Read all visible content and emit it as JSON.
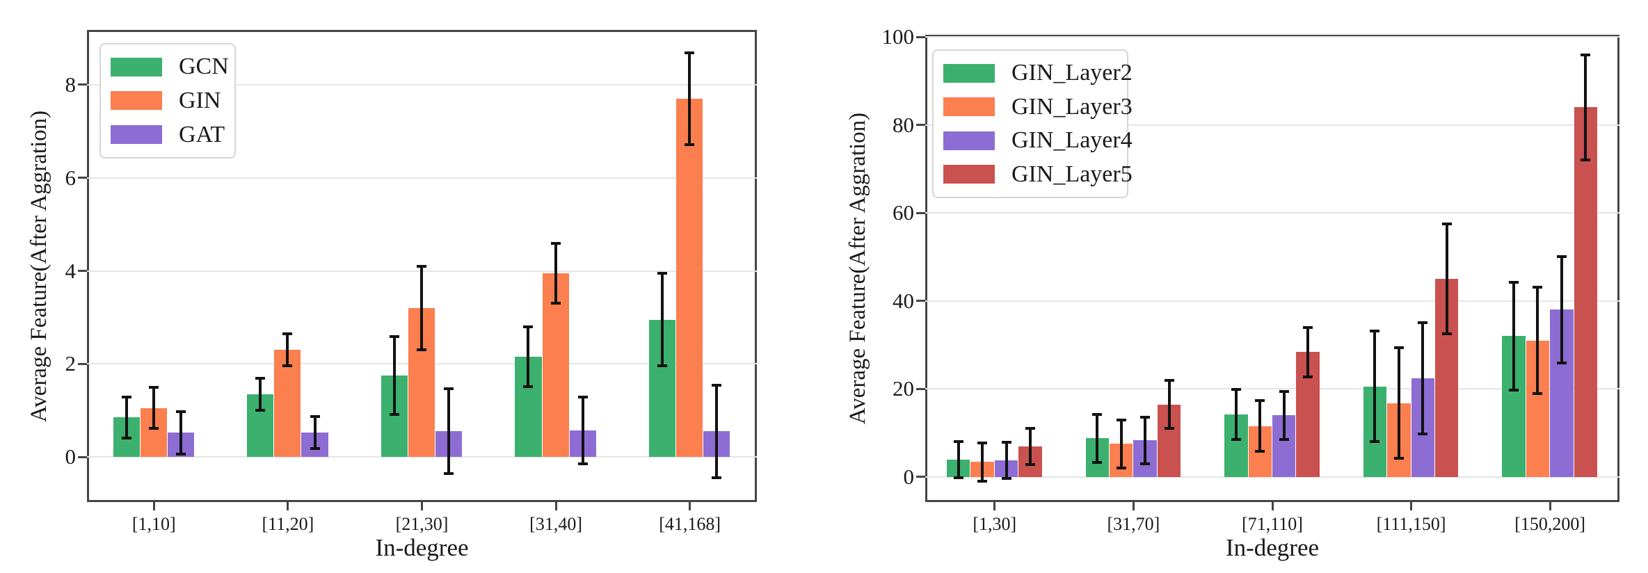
{
  "figure": {
    "background": "#ffffff"
  },
  "style": {
    "grid_color": "#e5e5e5",
    "spine_color": "#454545",
    "tick_color": "#454545",
    "errorbar_color": "#121212",
    "legend_border_color": "#d6d6d6",
    "legend_background": "#ffffff",
    "text_color": "#1a1a1a"
  },
  "chart_data": [
    {
      "type": "bar",
      "title": "",
      "xlabel": "In-degree",
      "ylabel": "Average Feature(After Aggration)",
      "categories": [
        "[1,10]",
        "[11,20]",
        "[21,30]",
        "[31,40]",
        "[41,168]"
      ],
      "series": [
        {
          "name": "GCN",
          "color": "#3cb06e",
          "values": [
            0.85,
            1.35,
            1.75,
            2.15,
            2.95
          ],
          "errors": [
            0.45,
            0.35,
            0.85,
            0.65,
            1.0
          ]
        },
        {
          "name": "GIN",
          "color": "#fc7f4f",
          "values": [
            1.05,
            2.3,
            3.2,
            3.95,
            7.7
          ],
          "errors": [
            0.45,
            0.35,
            0.9,
            0.65,
            1.0
          ]
        },
        {
          "name": "GAT",
          "color": "#8d6dd4",
          "values": [
            0.52,
            0.52,
            0.55,
            0.57,
            0.55
          ],
          "errors": [
            0.46,
            0.35,
            0.92,
            0.72,
            1.0
          ]
        }
      ],
      "yticks": [
        0,
        2,
        4,
        6,
        8
      ],
      "ylim": [
        -0.97,
        9.18
      ],
      "grid": true,
      "error_bars": true,
      "legend_position": "upper left"
    },
    {
      "type": "bar",
      "title": "",
      "xlabel": "In-degree",
      "ylabel": "Average Feature(After Aggration)",
      "categories": [
        "[1,30]",
        "[31,70]",
        "[71,110]",
        "[111,150]",
        "[150,200]"
      ],
      "series": [
        {
          "name": "GIN_Layer2",
          "color": "#3cb06e",
          "values": [
            4.0,
            8.8,
            14.2,
            20.6,
            32.0
          ],
          "errors": [
            4.2,
            5.5,
            5.8,
            12.6,
            12.3
          ]
        },
        {
          "name": "GIN_Layer3",
          "color": "#fc7f4f",
          "values": [
            3.4,
            7.5,
            11.6,
            16.8,
            31.0
          ],
          "errors": [
            4.4,
            5.5,
            5.8,
            12.6,
            12.2
          ]
        },
        {
          "name": "GIN_Layer4",
          "color": "#8d6dd4",
          "values": [
            3.8,
            8.3,
            14.0,
            22.4,
            38.0
          ],
          "errors": [
            4.2,
            5.4,
            5.5,
            12.7,
            12.1
          ]
        },
        {
          "name": "GIN_Layer5",
          "color": "#c9514f",
          "values": [
            7.0,
            16.5,
            28.4,
            45.0,
            84.0
          ],
          "errors": [
            4.2,
            5.5,
            5.7,
            12.6,
            12.0
          ]
        }
      ],
      "yticks": [
        0,
        20,
        40,
        60,
        80,
        100
      ],
      "ylim": [
        -5.7,
        100.5
      ],
      "grid": true,
      "error_bars": true,
      "legend_position": "upper left"
    }
  ]
}
